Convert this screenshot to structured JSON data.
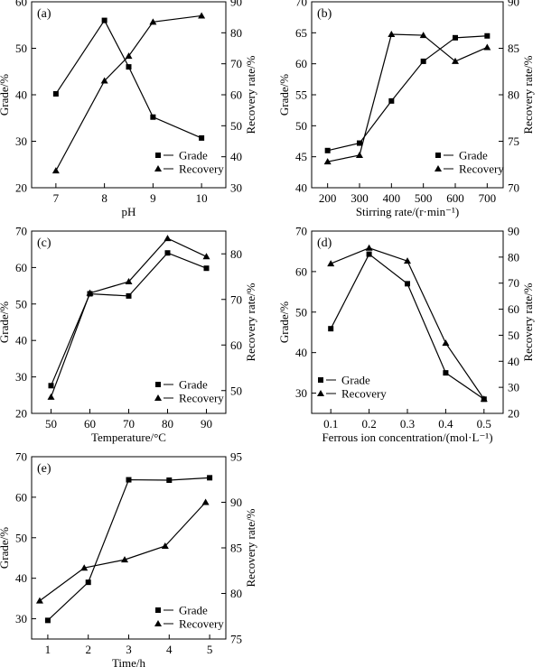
{
  "chart_data": [
    {
      "type": "line",
      "panel_label": "(a)",
      "xlabel": "pH",
      "ylabel_left": "Grade/%",
      "ylabel_right": "Recovery rate/%",
      "xlim": [
        6.5,
        10.5
      ],
      "ylim_left": [
        20,
        60
      ],
      "ylim_right": [
        30,
        90
      ],
      "xticks": [
        "7",
        "8",
        "9",
        "10"
      ],
      "yticks_left": [
        "20",
        "30",
        "40",
        "50",
        "60"
      ],
      "yticks_right": [
        "30",
        "40",
        "50",
        "60",
        "70",
        "80",
        "90"
      ],
      "legend_position": "bottom-right",
      "series": [
        {
          "name": "Grade",
          "axis": "left",
          "marker": "square",
          "x": [
            7,
            8,
            8.5,
            9,
            10
          ],
          "y": [
            40.2,
            56.0,
            46.0,
            35.2,
            30.7
          ]
        },
        {
          "name": "Recovery",
          "axis": "right",
          "marker": "triangle",
          "x": [
            7,
            8,
            8.5,
            9,
            10
          ],
          "y": [
            35.5,
            64.5,
            72.5,
            83.5,
            85.5
          ]
        }
      ]
    },
    {
      "type": "line",
      "panel_label": "(b)",
      "xlabel": "Stirring rate/(r·min⁻¹)",
      "ylabel_left": "Grade/%",
      "ylabel_right": "Recovery rate/%",
      "xlim": [
        150,
        750
      ],
      "ylim_left": [
        40,
        70
      ],
      "ylim_right": [
        70,
        90
      ],
      "xticks": [
        "200",
        "300",
        "400",
        "500",
        "600",
        "700"
      ],
      "yticks_left": [
        "40",
        "45",
        "50",
        "55",
        "60",
        "65",
        "70"
      ],
      "yticks_right": [
        "70",
        "75",
        "80",
        "85",
        "90"
      ],
      "legend_position": "bottom-right",
      "series": [
        {
          "name": "Grade",
          "axis": "left",
          "marker": "square",
          "x": [
            200,
            300,
            400,
            500,
            600,
            700
          ],
          "y": [
            46.0,
            47.2,
            54.0,
            60.4,
            64.2,
            64.5
          ]
        },
        {
          "name": "Recovery",
          "axis": "right",
          "marker": "triangle",
          "x": [
            200,
            300,
            400,
            500,
            600,
            700
          ],
          "y": [
            72.8,
            73.5,
            86.5,
            86.4,
            83.6,
            85.1
          ]
        }
      ]
    },
    {
      "type": "line",
      "panel_label": "(c)",
      "xlabel": "Temperature/°C",
      "ylabel_left": "Grade/%",
      "ylabel_right": "Recovery rate/%",
      "xlim": [
        45,
        95
      ],
      "ylim_left": [
        20,
        70
      ],
      "ylim_right": [
        45,
        85
      ],
      "xticks": [
        "50",
        "60",
        "70",
        "80",
        "90"
      ],
      "yticks_left": [
        "20",
        "30",
        "40",
        "50",
        "60",
        "70"
      ],
      "yticks_right": [
        "50",
        "60",
        "70",
        "80"
      ],
      "legend_position": "bottom-right",
      "series": [
        {
          "name": "Grade",
          "axis": "left",
          "marker": "square",
          "x": [
            50,
            60,
            70,
            80,
            90
          ],
          "y": [
            27.6,
            52.8,
            52.2,
            64.0,
            59.8
          ]
        },
        {
          "name": "Recovery",
          "axis": "right",
          "marker": "triangle",
          "x": [
            50,
            60,
            70,
            80,
            90
          ],
          "y": [
            48.6,
            71.4,
            73.9,
            83.4,
            79.4
          ]
        }
      ]
    },
    {
      "type": "line",
      "panel_label": "(d)",
      "xlabel": "Ferrous ion concentration/(mol·L⁻¹)",
      "ylabel_left": "Grade/%",
      "ylabel_right": "Recovery rate/%",
      "xlim": [
        0.05,
        0.55
      ],
      "ylim_left": [
        25,
        70
      ],
      "ylim_right": [
        20,
        90
      ],
      "xticks": [
        "0.1",
        "0.2",
        "0.3",
        "0.4",
        "0.5"
      ],
      "yticks_left": [
        "30",
        "40",
        "50",
        "60",
        "70"
      ],
      "yticks_right": [
        "20",
        "30",
        "40",
        "50",
        "60",
        "70",
        "80",
        "90"
      ],
      "legend_position": "bottom-left",
      "series": [
        {
          "name": "Grade",
          "axis": "left",
          "marker": "square",
          "x": [
            0.1,
            0.2,
            0.3,
            0.4,
            0.5
          ],
          "y": [
            45.9,
            64.3,
            57.0,
            35.0,
            28.5
          ]
        },
        {
          "name": "Recovery",
          "axis": "right",
          "marker": "triangle",
          "x": [
            0.1,
            0.2,
            0.3,
            0.4,
            0.5
          ],
          "y": [
            77.5,
            83.5,
            78.5,
            47.0,
            25.5
          ]
        }
      ]
    },
    {
      "type": "line",
      "panel_label": "(e)",
      "xlabel": "Time/h",
      "ylabel_left": "Grade/%",
      "ylabel_right": "Recovery rate/%",
      "xlim": [
        0.6,
        5.4
      ],
      "ylim_left": [
        25,
        70
      ],
      "ylim_right": [
        75,
        95
      ],
      "xticks": [
        "1",
        "2",
        "3",
        "4",
        "5"
      ],
      "yticks_left": [
        "30",
        "40",
        "50",
        "60",
        "70"
      ],
      "yticks_right": [
        "75",
        "80",
        "85",
        "90",
        "95"
      ],
      "legend_position": "bottom-right",
      "series": [
        {
          "name": "Grade",
          "axis": "left",
          "marker": "square",
          "x": [
            1,
            2,
            3,
            4,
            5
          ],
          "y": [
            29.6,
            39.0,
            64.3,
            64.2,
            64.8
          ]
        },
        {
          "name": "Recovery",
          "axis": "right",
          "marker": "triangle",
          "x": [
            0.8,
            1.9,
            2.9,
            3.9,
            4.9
          ],
          "y": [
            79.2,
            82.8,
            83.7,
            85.2,
            90.0
          ]
        }
      ]
    }
  ]
}
